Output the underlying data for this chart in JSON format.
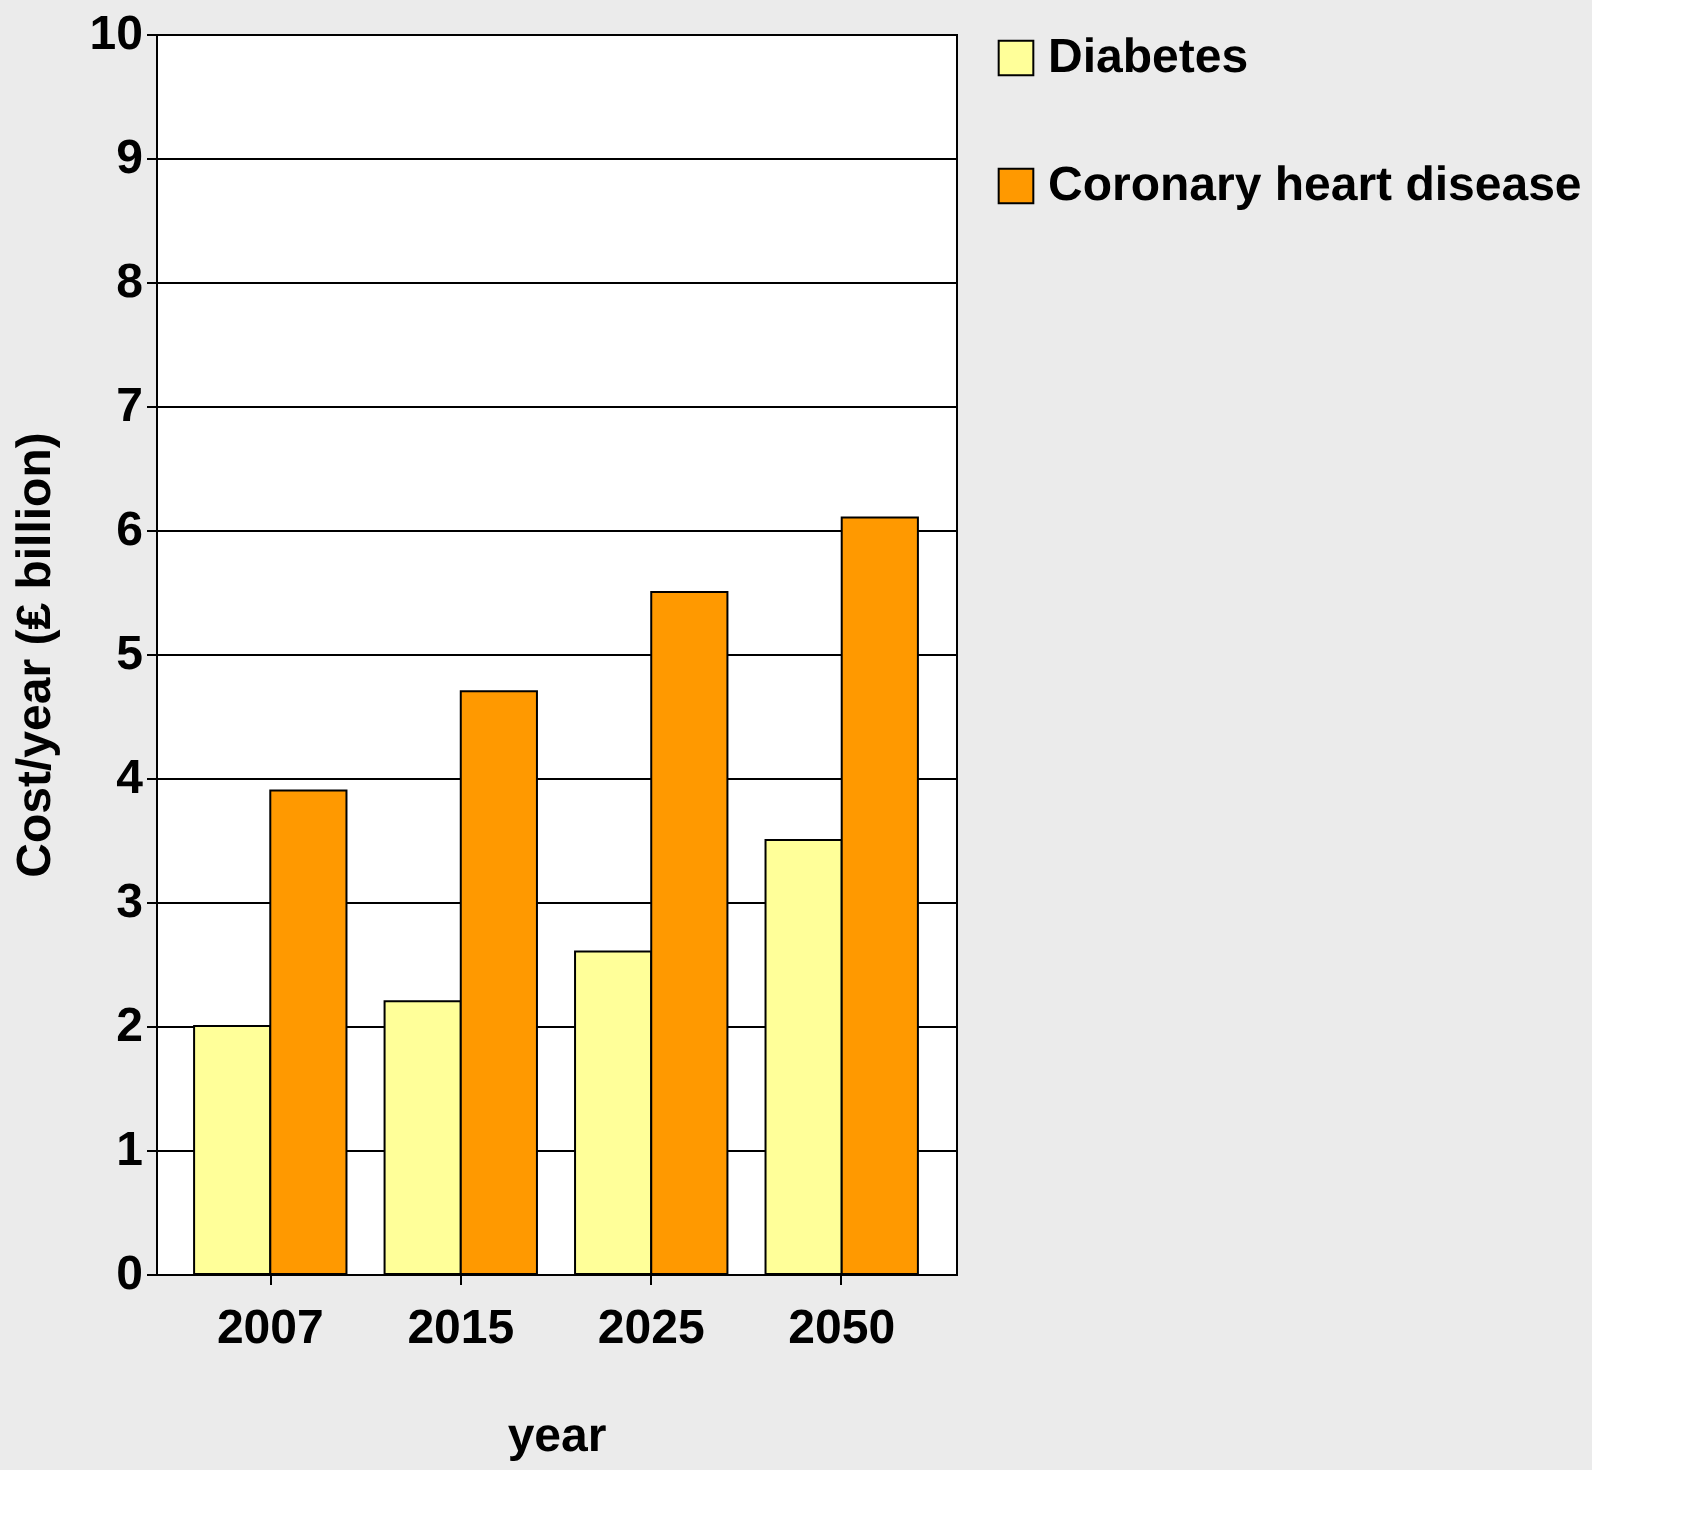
{
  "chart_data": {
    "type": "bar",
    "xlabel": "year",
    "ylabel": "Cost/year (₤ billion)",
    "categories": [
      "2007",
      "2015",
      "2025",
      "2050"
    ],
    "series": [
      {
        "name": "Diabetes",
        "color": "#ffff99",
        "values": [
          2.0,
          2.2,
          2.6,
          3.5
        ]
      },
      {
        "name": "Coronary heart disease",
        "color": "#ff9900",
        "values": [
          3.9,
          4.7,
          5.5,
          6.1
        ]
      }
    ],
    "ylim": [
      0,
      10
    ],
    "yticks": [
      0,
      1,
      2,
      3,
      4,
      5,
      6,
      7,
      8,
      9,
      10
    ],
    "grid": "y",
    "legend": "right"
  }
}
